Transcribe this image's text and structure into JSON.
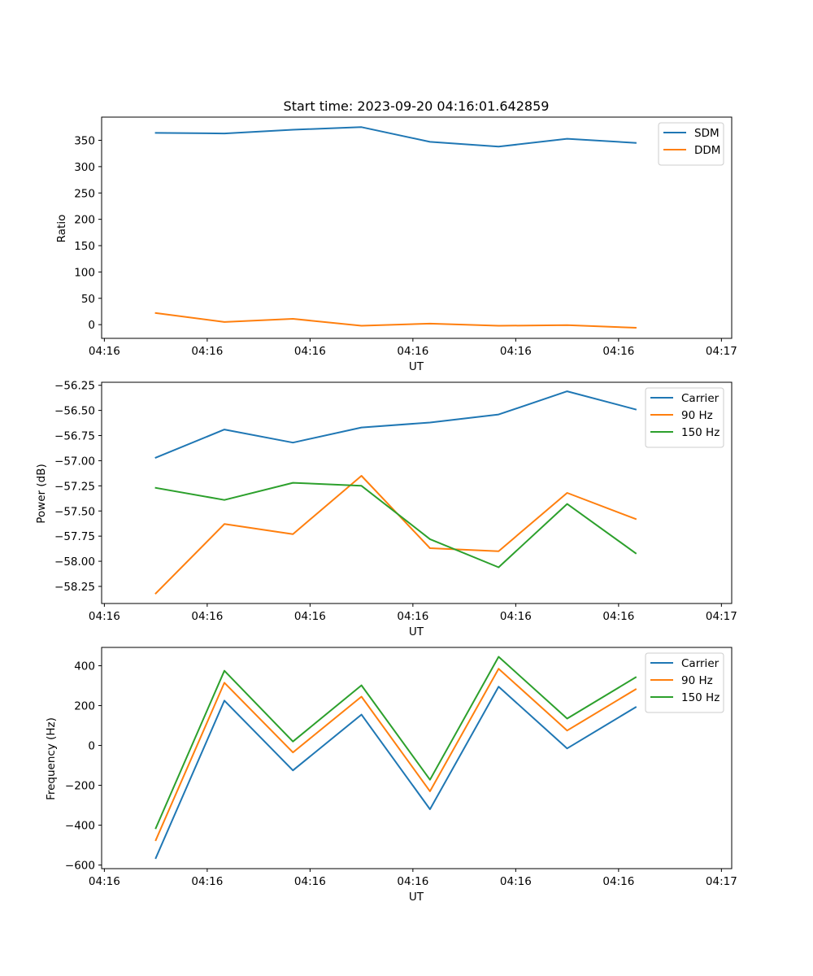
{
  "chart_data": [
    {
      "type": "line",
      "title": "Start time: 2023-09-20 04:16:01.642859",
      "xlabel": "UT",
      "ylabel": "Ratio",
      "x": [
        0.75,
        1.75,
        2.75,
        3.75,
        4.75,
        5.75,
        6.75,
        7.75
      ],
      "xlim": [
        -0.04,
        9.15
      ],
      "xticks": [
        0,
        1.5,
        3,
        4.5,
        6,
        7.5,
        9
      ],
      "xtick_labels": [
        "04:16",
        "04:16",
        "04:16",
        "04:16",
        "04:16",
        "04:16",
        "04:17"
      ],
      "ylim": [
        -26,
        394
      ],
      "yticks": [
        0,
        50,
        100,
        150,
        200,
        250,
        300,
        350
      ],
      "ytick_labels": [
        "0",
        "50",
        "100",
        "150",
        "200",
        "250",
        "300",
        "350"
      ],
      "legend_position": "top-right",
      "series": [
        {
          "name": "SDM",
          "color": "#1f77b4",
          "values": [
            364,
            363,
            370,
            375,
            347,
            338,
            353,
            345
          ]
        },
        {
          "name": "DDM",
          "color": "#ff7f0e",
          "values": [
            22,
            5,
            11,
            -2,
            2,
            -2,
            -1,
            -6
          ]
        }
      ]
    },
    {
      "type": "line",
      "title": "",
      "xlabel": "UT",
      "ylabel": "Power (dB)",
      "x": [
        0.75,
        1.75,
        2.75,
        3.75,
        4.75,
        5.75,
        6.75,
        7.75
      ],
      "xlim": [
        -0.04,
        9.15
      ],
      "xticks": [
        0,
        1.5,
        3,
        4.5,
        6,
        7.5,
        9
      ],
      "xtick_labels": [
        "04:16",
        "04:16",
        "04:16",
        "04:16",
        "04:16",
        "04:16",
        "04:17"
      ],
      "ylim": [
        -58.42,
        -56.22
      ],
      "yticks": [
        -58.25,
        -58.0,
        -57.75,
        -57.5,
        -57.25,
        -57.0,
        -56.75,
        -56.5,
        -56.25
      ],
      "ytick_labels": [
        "−58.25",
        "−58.00",
        "−57.75",
        "−57.50",
        "−57.25",
        "−57.00",
        "−56.75",
        "−56.50",
        "−56.25"
      ],
      "legend_position": "top-right",
      "series": [
        {
          "name": "Carrier",
          "color": "#1f77b4",
          "values": [
            -56.97,
            -56.69,
            -56.82,
            -56.67,
            -56.62,
            -56.54,
            -56.31,
            -56.49
          ]
        },
        {
          "name": "90 Hz",
          "color": "#ff7f0e",
          "values": [
            -58.32,
            -57.63,
            -57.73,
            -57.15,
            -57.87,
            -57.9,
            -57.32,
            -57.58
          ]
        },
        {
          "name": "150 Hz",
          "color": "#2ca02c",
          "values": [
            -57.27,
            -57.39,
            -57.22,
            -57.25,
            -57.78,
            -58.06,
            -57.43,
            -57.92
          ]
        }
      ]
    },
    {
      "type": "line",
      "title": "",
      "xlabel": "UT",
      "ylabel": "Frequency (Hz)",
      "x": [
        0.75,
        1.75,
        2.75,
        3.75,
        4.75,
        5.75,
        6.75,
        7.75
      ],
      "xlim": [
        -0.04,
        9.15
      ],
      "xticks": [
        0,
        1.5,
        3,
        4.5,
        6,
        7.5,
        9
      ],
      "xtick_labels": [
        "04:16",
        "04:16",
        "04:16",
        "04:16",
        "04:16",
        "04:16",
        "04:17"
      ],
      "ylim": [
        -618,
        492
      ],
      "yticks": [
        -600,
        -400,
        -200,
        0,
        200,
        400
      ],
      "ytick_labels": [
        "−600",
        "−400",
        "−200",
        "0",
        "200",
        "400"
      ],
      "legend_position": "top-right",
      "series": [
        {
          "name": "Carrier",
          "color": "#1f77b4",
          "values": [
            -565,
            225,
            -125,
            155,
            -320,
            295,
            -15,
            192
          ]
        },
        {
          "name": "90 Hz",
          "color": "#ff7f0e",
          "values": [
            -475,
            315,
            -35,
            245,
            -230,
            385,
            75,
            282
          ]
        },
        {
          "name": "150 Hz",
          "color": "#2ca02c",
          "values": [
            -415,
            375,
            20,
            302,
            -172,
            445,
            135,
            342
          ]
        }
      ]
    }
  ]
}
